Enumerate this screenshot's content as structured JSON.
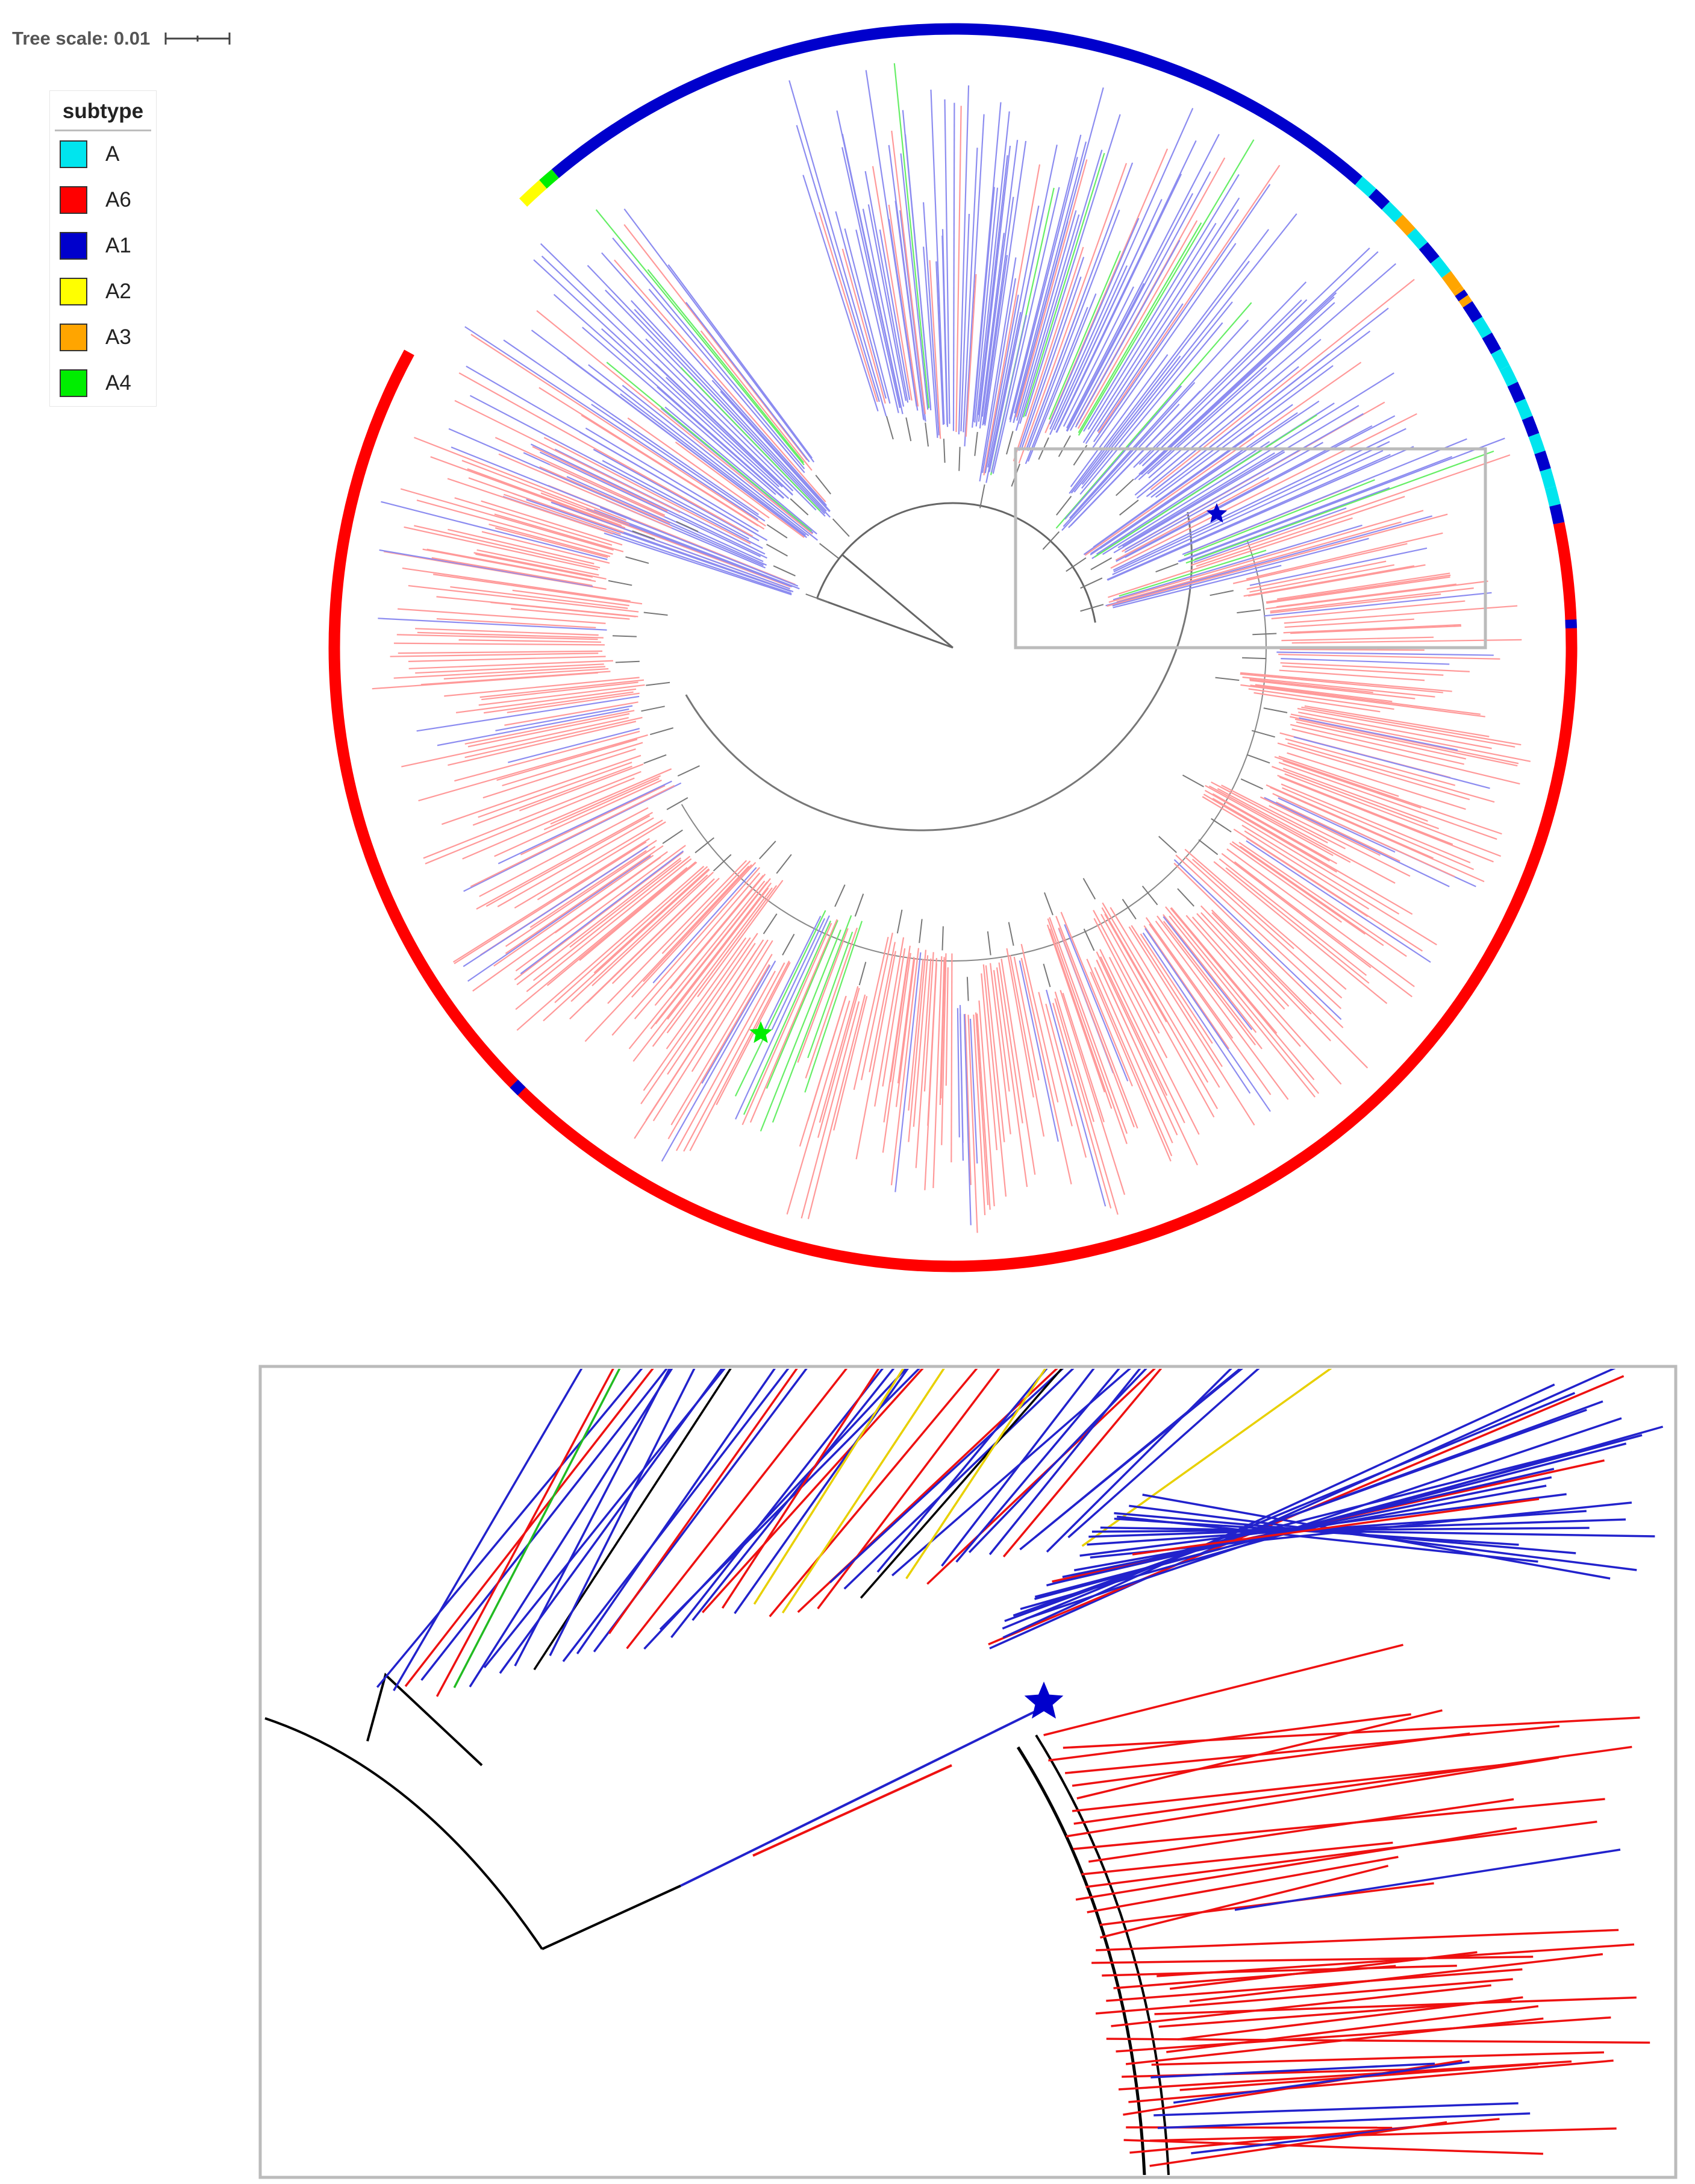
{
  "scale_label": "Tree scale: 0.01",
  "legend": {
    "title": "subtype",
    "items": [
      {
        "label": "A",
        "color": "#00e5ee"
      },
      {
        "label": "A6",
        "color": "#ff0000"
      },
      {
        "label": "A1",
        "color": "#0000cc"
      },
      {
        "label": "A2",
        "color": "#ffff00"
      },
      {
        "label": "A3",
        "color": "#ffa500"
      },
      {
        "label": "A4",
        "color": "#00ee00"
      }
    ]
  },
  "markers": [
    {
      "name": "A1-origin-star",
      "color": "#0000cc"
    },
    {
      "name": "A4-origin-star",
      "color": "#00ee00"
    }
  ],
  "panels": {
    "overview": "circular phylogenetic tree with subtype ring",
    "zoom": "magnified view of boxed region"
  }
}
